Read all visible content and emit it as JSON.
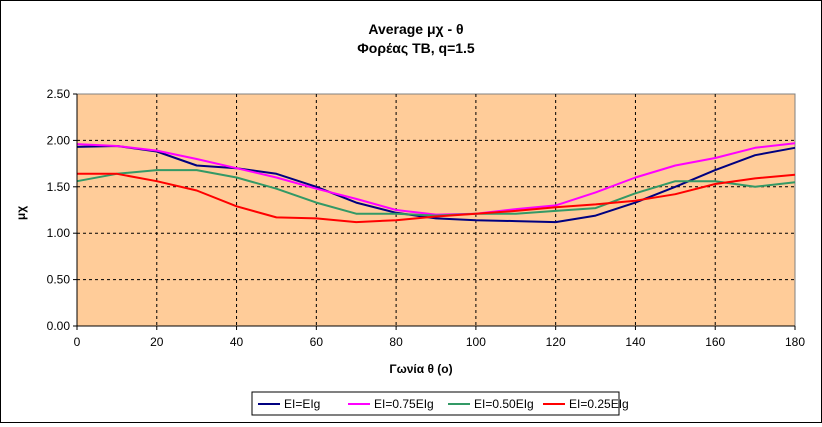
{
  "chart_data": {
    "type": "line",
    "title": "Average μχ  - θ",
    "subtitle": "Φορέας TB, q=1.5",
    "xlabel": "Γωνία θ (ο)",
    "ylabel": "μχ",
    "xlim": [
      0,
      180
    ],
    "ylim": [
      0,
      2.5
    ],
    "x_ticks": [
      "0",
      "20",
      "40",
      "60",
      "80",
      "100",
      "120",
      "140",
      "160",
      "180"
    ],
    "y_ticks": [
      "0.00",
      "0.50",
      "1.00",
      "1.50",
      "2.00",
      "2.50"
    ],
    "grid": true,
    "legend_position": "bottom",
    "plot_background": "#FFCC99",
    "x": [
      0,
      10,
      20,
      30,
      40,
      50,
      60,
      70,
      80,
      90,
      100,
      110,
      120,
      130,
      140,
      150,
      160,
      170,
      180
    ],
    "series": [
      {
        "name": "EI=EIg",
        "color": "#000080",
        "values": [
          1.93,
          1.94,
          1.88,
          1.73,
          1.7,
          1.64,
          1.5,
          1.33,
          1.22,
          1.16,
          1.14,
          1.13,
          1.12,
          1.19,
          1.33,
          1.5,
          1.68,
          1.84,
          1.92
        ]
      },
      {
        "name": "EI=0.75EIg",
        "color": "#FF00FF",
        "values": [
          1.96,
          1.94,
          1.89,
          1.8,
          1.7,
          1.6,
          1.48,
          1.37,
          1.25,
          1.2,
          1.21,
          1.26,
          1.3,
          1.44,
          1.6,
          1.73,
          1.81,
          1.92,
          1.97
        ]
      },
      {
        "name": "EI=0.50EIg",
        "color": "#339966",
        "values": [
          1.56,
          1.64,
          1.68,
          1.68,
          1.6,
          1.48,
          1.33,
          1.21,
          1.21,
          1.19,
          1.21,
          1.21,
          1.24,
          1.27,
          1.43,
          1.56,
          1.56,
          1.5,
          1.55
        ]
      },
      {
        "name": "EI=0.25EIg",
        "color": "#FF0000",
        "values": [
          1.64,
          1.64,
          1.56,
          1.46,
          1.29,
          1.17,
          1.16,
          1.12,
          1.14,
          1.18,
          1.21,
          1.24,
          1.28,
          1.31,
          1.35,
          1.42,
          1.53,
          1.59,
          1.63
        ]
      }
    ]
  }
}
